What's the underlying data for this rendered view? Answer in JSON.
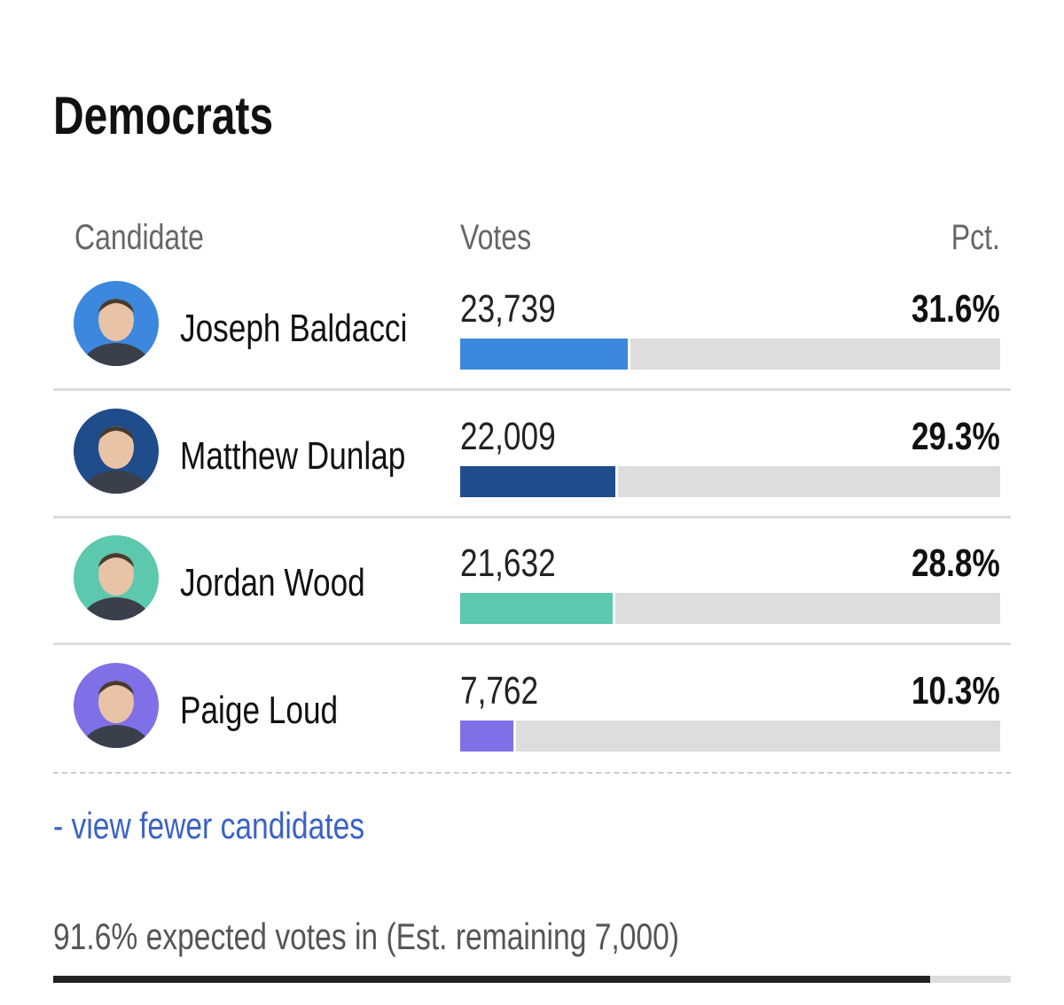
{
  "header": {
    "title": "Democrats"
  },
  "table": {
    "columns": [
      "Candidate",
      "Votes",
      "Pct."
    ],
    "rows": [
      {
        "name": "Joseph Baldacci",
        "votes": "23,739",
        "pct": {
          "value": 31.6,
          "label": "31.6%"
        },
        "color": "#3b88de"
      },
      {
        "name": "Matthew Dunlap",
        "votes": "22,009",
        "pct": {
          "value": 29.3,
          "label": "29.3%"
        },
        "color": "#1f4c8b"
      },
      {
        "name": "Jordan Wood",
        "votes": "21,632",
        "pct": {
          "value": 28.8,
          "label": "28.8%"
        },
        "color": "#5cc8ae"
      },
      {
        "name": "Paige Loud",
        "votes": "7,762",
        "pct": {
          "value": 10.3,
          "label": "10.3%"
        },
        "color": "#7f70e8"
      }
    ]
  },
  "link": "- view fewer candidates",
  "footer": {
    "progress": {
      "value": 91.6,
      "label": "91.6%"
    },
    "text": " expected votes in (Est. remaining 7,000)"
  }
}
